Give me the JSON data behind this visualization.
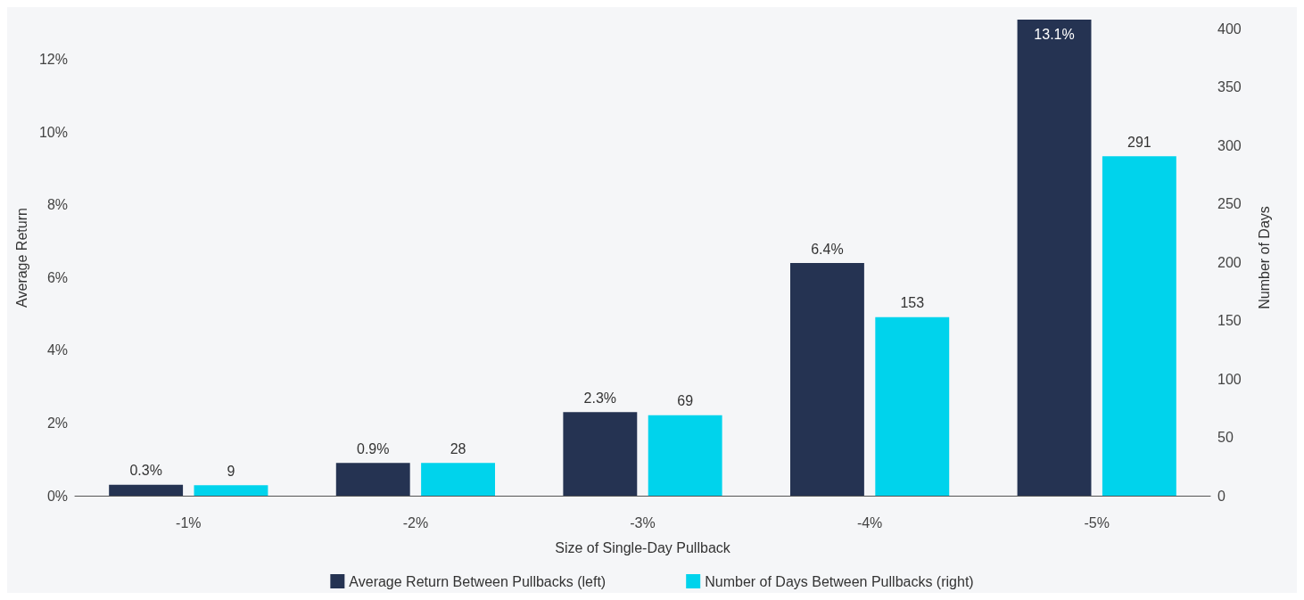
{
  "chart_data": {
    "type": "bar",
    "xlabel": "Size of Single-Day Pullback",
    "ylabel": "Average Return",
    "y2label": "Number of Days",
    "categories": [
      "-1%",
      "-2%",
      "-3%",
      "-4%",
      "-5%"
    ],
    "series": [
      {
        "name": "Average Return Between Pullbacks (left)",
        "color": "#253352",
        "values": [
          0.3,
          0.9,
          2.3,
          6.4,
          13.1
        ],
        "value_labels": [
          "0.3%",
          "0.9%",
          "2.3%",
          "6.4%",
          "13.1%"
        ]
      },
      {
        "name": "Number of Days Between Pullbacks (right)",
        "color": "#00d3ec",
        "axis": "y2",
        "values": [
          9,
          28,
          69,
          153,
          291
        ],
        "value_labels": [
          "9",
          "28",
          "69",
          "153",
          "291"
        ]
      }
    ],
    "ylim": [
      0,
      13.1
    ],
    "yticks": [
      {
        "value": 0,
        "label": "0%"
      },
      {
        "value": 2,
        "label": "2%"
      },
      {
        "value": 4,
        "label": "4%"
      },
      {
        "value": 6,
        "label": "6%"
      },
      {
        "value": 8,
        "label": "8%"
      },
      {
        "value": 10,
        "label": "10%"
      },
      {
        "value": 12,
        "label": "12%"
      }
    ],
    "y2lim": [
      0,
      408
    ],
    "y2ticks": [
      0,
      50,
      100,
      150,
      200,
      250,
      300,
      350,
      400
    ],
    "legend": "bottom",
    "grid": false
  }
}
